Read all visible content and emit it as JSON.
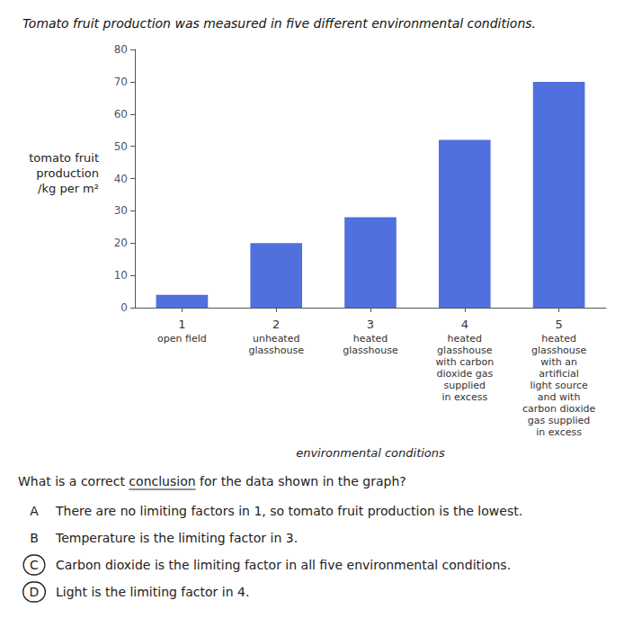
{
  "chart_data": {
    "type": "bar",
    "title": "Tomato fruit production was measured in five different environmental conditions.",
    "categories": [
      "1",
      "2",
      "3",
      "4",
      "5"
    ],
    "values": [
      4,
      20,
      28,
      52,
      70
    ],
    "ylim": [
      0,
      80
    ],
    "yticks": [
      0,
      10,
      20,
      30,
      40,
      50,
      60,
      70,
      80
    ],
    "ylabel": [
      "tomato fruit",
      "production",
      "/kg per m²"
    ],
    "xlabel": "environmental conditions",
    "category_sublabels": [
      [
        "open field"
      ],
      [
        "unheated",
        "glasshouse"
      ],
      [
        "heated",
        "glasshouse"
      ],
      [
        "heated",
        "glasshouse",
        "with carbon",
        "dioxide gas",
        "supplied",
        "in excess"
      ],
      [
        "heated",
        "glasshouse",
        "with an",
        "artificial",
        "light source",
        "and with",
        "carbon dioxide",
        "gas supplied",
        "in excess"
      ]
    ],
    "question": "What is a correct conclusion for the data shown in the graph?",
    "underline": "conclusion",
    "answers": [
      {
        "letter": "A",
        "text": "There are no limiting factors in 1, so tomato fruit production is the lowest.",
        "circled": false
      },
      {
        "letter": "B",
        "text": "Temperature is the limiting factor in 3.",
        "circled": false
      },
      {
        "letter": "C",
        "text": "Carbon dioxide is the limiting factor in all five environmental conditions.",
        "circled": true
      },
      {
        "letter": "D",
        "text": "Light is the limiting factor in 4.",
        "circled": true
      }
    ],
    "grid": false
  }
}
